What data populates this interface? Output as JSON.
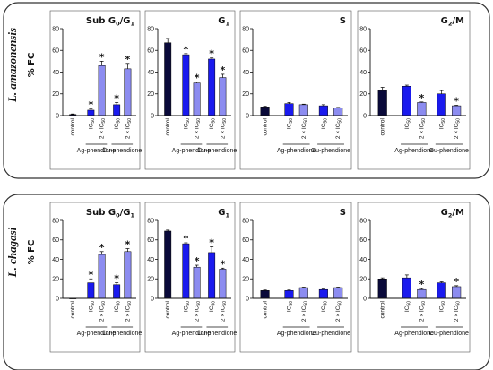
{
  "colors": {
    "control": "#0a0a3a",
    "ic50": "#1a1aee",
    "ic50x2": "#8c8cf0",
    "frame": "#333333",
    "axis": "#111111"
  },
  "group_labels": [
    "Ag-phendione",
    "Cu-phendione"
  ],
  "category_labels": {
    "control": "control",
    "ic50": "IC",
    "ic50_sub": "50",
    "ic50x2": "2 × IC",
    "ic50x2_sub": "50"
  },
  "ylabel": "% FC",
  "chart_data": [
    {
      "type": "bar",
      "row": "L. amazonensis",
      "panels": [
        {
          "title": "Sub G",
          "title_sub": "0",
          "title_rest": "/G",
          "title_sub2": "1",
          "ylim": [
            0,
            80
          ],
          "yticks": [
            "0",
            "20",
            "40",
            "60",
            "80"
          ],
          "values": [
            1,
            5,
            46,
            10,
            43
          ],
          "errors": [
            0.5,
            1,
            4,
            2,
            5
          ],
          "significant": [
            false,
            true,
            true,
            true,
            true
          ]
        },
        {
          "title": "G",
          "title_sub": "1",
          "ylim": [
            0,
            80
          ],
          "yticks": [
            "0",
            "20",
            "40",
            "60",
            "80"
          ],
          "values": [
            67,
            56,
            30,
            52,
            35
          ],
          "errors": [
            4,
            1,
            1,
            1,
            3
          ],
          "significant": [
            false,
            true,
            true,
            true,
            true
          ]
        },
        {
          "title": "S",
          "ylim": [
            0,
            80
          ],
          "yticks": [
            "0",
            "20",
            "40",
            "60",
            "80"
          ],
          "values": [
            8,
            11,
            10,
            9,
            7
          ],
          "errors": [
            0.5,
            1,
            0.5,
            1,
            0.5
          ],
          "significant": [
            false,
            false,
            false,
            false,
            false
          ]
        },
        {
          "title": "G",
          "title_sub": "2",
          "title_rest": "/M",
          "ylim": [
            0,
            80
          ],
          "yticks": [
            "0",
            "20",
            "40",
            "60",
            "80"
          ],
          "values": [
            23,
            27,
            12,
            20,
            9
          ],
          "errors": [
            3,
            1,
            0.5,
            3,
            0.5
          ],
          "significant": [
            false,
            false,
            true,
            false,
            true
          ]
        }
      ]
    },
    {
      "type": "bar",
      "row": "L. chagasi",
      "panels": [
        {
          "title": "Sub G",
          "title_sub": "0",
          "title_rest": "/G",
          "title_sub2": "1",
          "ylim": [
            0,
            80
          ],
          "yticks": [
            "0",
            "20",
            "40",
            "60",
            "80"
          ],
          "values": [
            0,
            16,
            45,
            14,
            48
          ],
          "errors": [
            0,
            4,
            3,
            2,
            3
          ],
          "significant": [
            false,
            true,
            true,
            true,
            true
          ]
        },
        {
          "title": "G",
          "title_sub": "1",
          "ylim": [
            0,
            80
          ],
          "yticks": [
            "0",
            "20",
            "40",
            "60",
            "80"
          ],
          "values": [
            69,
            56,
            32,
            47,
            30
          ],
          "errors": [
            1,
            1,
            2,
            6,
            1
          ],
          "significant": [
            false,
            true,
            true,
            true,
            true
          ]
        },
        {
          "title": "S",
          "ylim": [
            0,
            80
          ],
          "yticks": [
            "0",
            "20",
            "40",
            "60",
            "80"
          ],
          "values": [
            8,
            8,
            11,
            9,
            11
          ],
          "errors": [
            0.5,
            0.5,
            0.5,
            0.5,
            0.5
          ],
          "significant": [
            false,
            false,
            false,
            false,
            false
          ]
        },
        {
          "title": "G",
          "title_sub": "2",
          "title_rest": "/M",
          "ylim": [
            0,
            80
          ],
          "yticks": [
            "0",
            "20",
            "40",
            "60",
            "80"
          ],
          "values": [
            20,
            21,
            9,
            16,
            12
          ],
          "errors": [
            1,
            3,
            1,
            1,
            1
          ],
          "significant": [
            false,
            false,
            true,
            false,
            true
          ]
        }
      ]
    }
  ]
}
